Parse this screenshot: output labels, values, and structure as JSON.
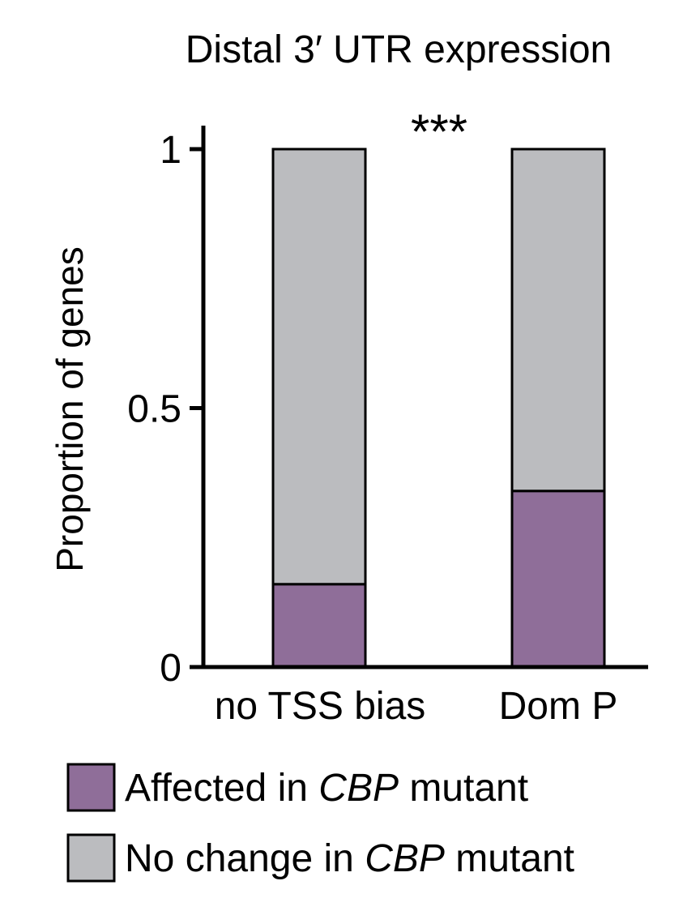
{
  "chart_data": {
    "type": "bar",
    "stacked": true,
    "title": "Distal 3′ UTR expression",
    "ylabel": "Proportion of genes",
    "xlabel": "",
    "ylim": [
      0,
      1
    ],
    "yticks": [
      {
        "value": 0,
        "label": "0"
      },
      {
        "value": 0.5,
        "label": "0.5"
      },
      {
        "value": 1,
        "label": "1"
      }
    ],
    "categories": [
      "no TSS bias",
      "Dom P"
    ],
    "series": [
      {
        "name": "Affected in CBP mutant",
        "color": "#8f6e99",
        "values": [
          0.16,
          0.34
        ]
      },
      {
        "name": "No change in CBP mutant",
        "color": "#bbbcbf",
        "values": [
          0.84,
          0.66
        ]
      }
    ],
    "significance": "***",
    "legend_position": "bottom"
  },
  "legend": {
    "items": [
      {
        "pre": "Affected in ",
        "italic": "CBP",
        "post": " mutant",
        "color": "#8f6e99"
      },
      {
        "pre": "No change in ",
        "italic": "CBP",
        "post": " mutant",
        "color": "#bbbcbf"
      }
    ]
  }
}
